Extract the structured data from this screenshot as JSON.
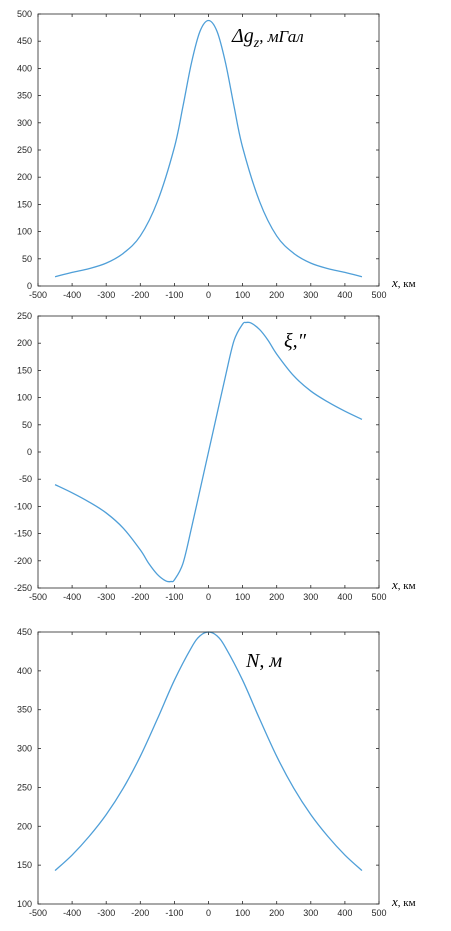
{
  "line_color": "#4f9fd8",
  "chart_data": [
    {
      "type": "line",
      "title": "",
      "annotation": "Δg_z, мГал",
      "annotation_parts": {
        "sym": "Δg",
        "sub": "z",
        "unit": ", мГал"
      },
      "xlabel": "x, км",
      "xlabel_parts": {
        "var": "x",
        "unit": ", км"
      },
      "xlim": [
        -500,
        500
      ],
      "ylim": [
        0,
        500
      ],
      "xticks": [
        -500,
        -400,
        -300,
        -200,
        -100,
        0,
        100,
        200,
        300,
        400,
        500
      ],
      "yticks": [
        0,
        50,
        100,
        150,
        200,
        250,
        300,
        350,
        400,
        450,
        500
      ],
      "grid": false,
      "series": [
        {
          "x": [
            -450,
            -400,
            -350,
            -300,
            -250,
            -200,
            -150,
            -100,
            -75,
            -50,
            -25,
            0,
            25,
            50,
            75,
            100,
            150,
            200,
            250,
            300,
            350,
            400,
            450
          ],
          "y": [
            17,
            25,
            32,
            42,
            60,
            92,
            155,
            255,
            330,
            410,
            468,
            488,
            468,
            410,
            330,
            255,
            155,
            92,
            60,
            42,
            32,
            25,
            17
          ]
        }
      ]
    },
    {
      "type": "line",
      "title": "",
      "annotation": "ξ,″",
      "xlabel": "x, км",
      "xlabel_parts": {
        "var": "x",
        "unit": ", км"
      },
      "xlim": [
        -500,
        500
      ],
      "ylim": [
        -250,
        250
      ],
      "xticks": [
        -500,
        -400,
        -300,
        -200,
        -100,
        0,
        100,
        200,
        300,
        400,
        500
      ],
      "yticks": [
        -250,
        -200,
        -150,
        -100,
        -50,
        0,
        50,
        100,
        150,
        200,
        250
      ],
      "grid": false,
      "series": [
        {
          "x": [
            -450,
            -400,
            -350,
            -300,
            -250,
            -200,
            -175,
            -150,
            -125,
            -110,
            -100,
            -75,
            -50,
            -25,
            0,
            25,
            50,
            75,
            100,
            110,
            125,
            150,
            175,
            200,
            250,
            300,
            350,
            400,
            450
          ],
          "y": [
            -60,
            -75,
            -92,
            -112,
            -140,
            -180,
            -205,
            -225,
            -237,
            -238,
            -235,
            -205,
            -140,
            -70,
            0,
            70,
            140,
            205,
            235,
            238,
            237,
            225,
            205,
            180,
            140,
            112,
            92,
            75,
            60
          ]
        }
      ]
    },
    {
      "type": "line",
      "title": "",
      "annotation": "N, м",
      "xlabel": "x, км",
      "xlabel_parts": {
        "var": "x",
        "unit": ", км"
      },
      "xlim": [
        -500,
        500
      ],
      "ylim": [
        100,
        450
      ],
      "xticks": [
        -500,
        -400,
        -300,
        -200,
        -100,
        0,
        100,
        200,
        300,
        400,
        500
      ],
      "yticks": [
        100,
        150,
        200,
        250,
        300,
        350,
        400,
        450
      ],
      "grid": false,
      "series": [
        {
          "x": [
            -450,
            -400,
            -350,
            -300,
            -250,
            -200,
            -150,
            -100,
            -50,
            -25,
            0,
            25,
            50,
            100,
            150,
            200,
            250,
            300,
            350,
            400,
            450
          ],
          "y": [
            143,
            163,
            187,
            215,
            249,
            290,
            338,
            388,
            430,
            445,
            450,
            445,
            430,
            388,
            338,
            290,
            249,
            215,
            187,
            163,
            143
          ]
        }
      ]
    }
  ]
}
